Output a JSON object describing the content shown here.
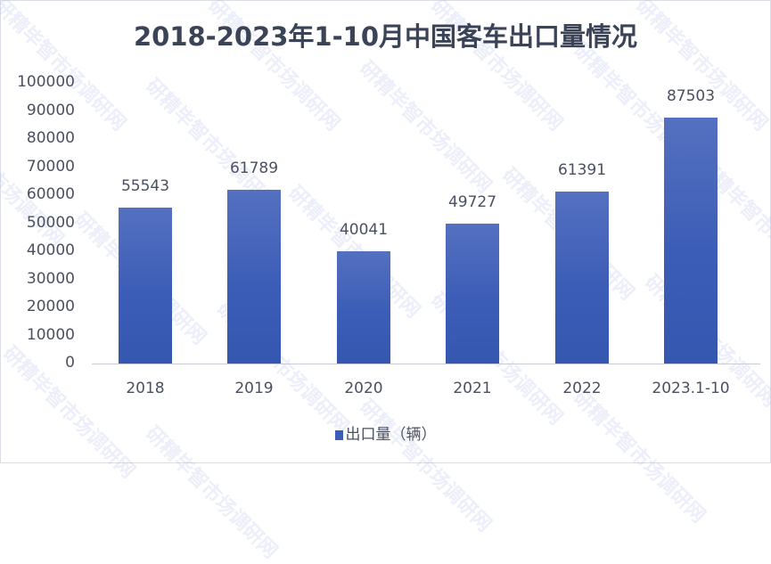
{
  "chart_data": {
    "type": "bar",
    "title": "2018-2023年1-10月中国客车出口量情况",
    "categories": [
      "2018",
      "2019",
      "2020",
      "2021",
      "2022",
      "2023.1-10"
    ],
    "series": [
      {
        "name": "出口量（辆）",
        "values": [
          55543,
          61789,
          40041,
          49727,
          61391,
          87503
        ],
        "color": "#3c5db7"
      }
    ],
    "xlabel": "",
    "ylabel": "",
    "ylim": [
      0,
      100000
    ],
    "yticks": [
      "100000",
      "90000",
      "80000",
      "70000",
      "60000",
      "50000",
      "40000",
      "30000",
      "20000",
      "10000",
      "0"
    ],
    "grid": false,
    "legend_position": "bottom",
    "data_labels": [
      "55543",
      "61789",
      "40041",
      "49727",
      "61391",
      "87503"
    ]
  },
  "watermark": "研精毕智市场调研网"
}
